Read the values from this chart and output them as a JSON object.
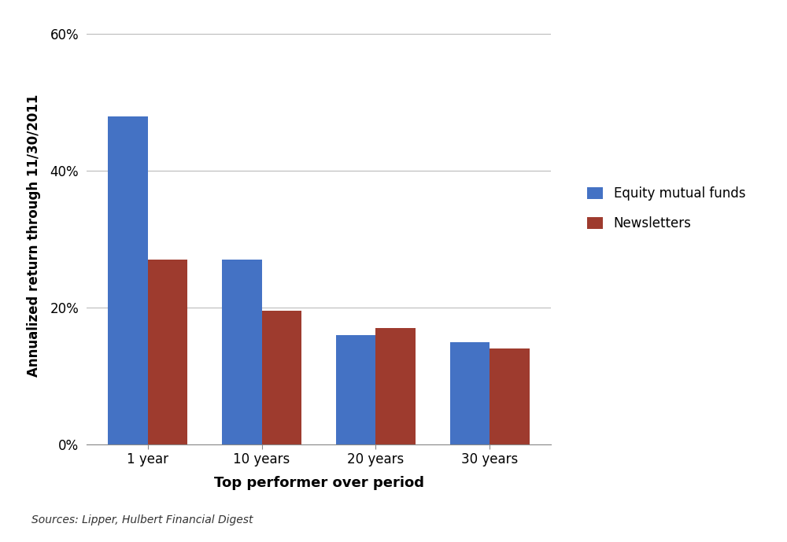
{
  "categories": [
    "1 year",
    "10 years",
    "20 years",
    "30 years"
  ],
  "equity_values": [
    0.48,
    0.27,
    0.16,
    0.15
  ],
  "newsletter_values": [
    0.27,
    0.195,
    0.17,
    0.14
  ],
  "equity_color": "#4472C4",
  "newsletter_color": "#9E3B2E",
  "ylabel": "Annualized return through 11/30/2011",
  "xlabel": "Top performer over period",
  "legend_equity": "Equity mutual funds",
  "legend_newsletter": "Newsletters",
  "source_text": "Sources: Lipper, Hulbert Financial Digest",
  "ylim": [
    0,
    0.61
  ],
  "yticks": [
    0.0,
    0.2,
    0.4,
    0.6
  ],
  "ytick_labels": [
    "0%",
    "20%",
    "40%",
    "60%"
  ],
  "bar_width": 0.35,
  "background_color": "#ffffff",
  "grid_color": "#bbbbbb"
}
